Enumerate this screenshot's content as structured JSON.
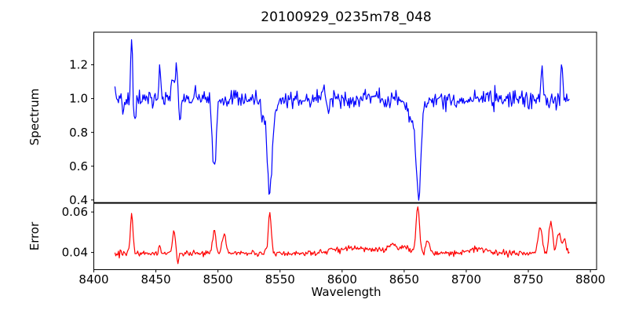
{
  "chart_data": {
    "type": "line",
    "title": "20100929_0235m78_048",
    "xlabel": "Wavelength",
    "xlim": [
      8400,
      8805
    ],
    "xticks": [
      8400,
      8450,
      8500,
      8550,
      8600,
      8650,
      8700,
      8750,
      8800
    ],
    "x_start": 8417,
    "x_end": 8783,
    "n_points": 520,
    "grid": false,
    "legend": "none",
    "axis_color": "#000000",
    "panels": [
      {
        "name": "spectrum",
        "ylabel": "Spectrum",
        "line_color": "#0000ff",
        "ylim": [
          0.385,
          1.393
        ],
        "yticks": [
          0.4,
          0.6,
          0.8,
          1.0,
          1.2
        ],
        "ytick_labels": [
          "0.4",
          "0.6",
          "0.8",
          "1.0",
          "1.2"
        ],
        "baseline": 1.0,
        "noise_sigma": 0.026,
        "noise_seed": 7,
        "features": [
          {
            "x": 8424.0,
            "amp": -0.09,
            "sigma": 0.8
          },
          {
            "x": 8430.5,
            "amp": 0.36,
            "sigma": 0.7
          },
          {
            "x": 8433.0,
            "amp": -0.16,
            "sigma": 0.9
          },
          {
            "x": 8453.0,
            "amp": 0.17,
            "sigma": 0.7
          },
          {
            "x": 8463.5,
            "amp": 0.16,
            "sigma": 0.9
          },
          {
            "x": 8466.5,
            "amp": 0.21,
            "sigma": 0.8
          },
          {
            "x": 8469.5,
            "amp": -0.13,
            "sigma": 0.8
          },
          {
            "x": 8497.0,
            "amp": -0.42,
            "sigma": 1.5
          },
          {
            "x": 8536.0,
            "amp": -0.09,
            "sigma": 1.0
          },
          {
            "x": 8541.7,
            "amp": -0.5,
            "sigma": 2.0
          },
          {
            "x": 8541.7,
            "amp": -0.05,
            "sigma": 6.0
          },
          {
            "x": 8585.0,
            "amp": 0.1,
            "sigma": 0.8
          },
          {
            "x": 8589.0,
            "amp": -0.1,
            "sigma": 0.8
          },
          {
            "x": 8655.0,
            "amp": -0.08,
            "sigma": 2.5
          },
          {
            "x": 8661.5,
            "amp": -0.5,
            "sigma": 1.8
          },
          {
            "x": 8661.5,
            "amp": -0.07,
            "sigma": 5.0
          },
          {
            "x": 8761.0,
            "amp": 0.2,
            "sigma": 0.8
          },
          {
            "x": 8777.0,
            "amp": 0.25,
            "sigma": 0.7
          }
        ],
        "key_points": [
          [
            8417,
            1.0
          ],
          [
            8430.5,
            1.35
          ],
          [
            8453,
            1.17
          ],
          [
            8466.5,
            1.21
          ],
          [
            8497,
            0.56
          ],
          [
            8541.7,
            0.46
          ],
          [
            8661.5,
            0.43
          ],
          [
            8761,
            1.21
          ],
          [
            8777,
            1.23
          ],
          [
            8783,
            1.0
          ]
        ]
      },
      {
        "name": "error",
        "ylabel": "Error",
        "line_color": "#ff0000",
        "ylim": [
          0.0315,
          0.0643
        ],
        "yticks": [
          0.04,
          0.06
        ],
        "ytick_labels": [
          "0.04",
          "0.06"
        ],
        "baseline": 0.0395,
        "noise_sigma": 0.00075,
        "noise_seed": 99,
        "features": [
          {
            "x": 8430.5,
            "amp": 0.019,
            "sigma": 1.1
          },
          {
            "x": 8453.0,
            "amp": 0.004,
            "sigma": 1.0
          },
          {
            "x": 8464.5,
            "amp": 0.0105,
            "sigma": 1.3
          },
          {
            "x": 8467.5,
            "amp": -0.005,
            "sigma": 0.8
          },
          {
            "x": 8497.0,
            "amp": 0.0115,
            "sigma": 1.3
          },
          {
            "x": 8505.0,
            "amp": 0.01,
            "sigma": 1.4
          },
          {
            "x": 8541.7,
            "amp": 0.0205,
            "sigma": 1.2
          },
          {
            "x": 8610.0,
            "amp": 0.0025,
            "sigma": 20.0
          },
          {
            "x": 8640.0,
            "amp": 0.004,
            "sigma": 3.0
          },
          {
            "x": 8650.0,
            "amp": 0.003,
            "sigma": 4.0
          },
          {
            "x": 8661.0,
            "amp": 0.0225,
            "sigma": 1.4
          },
          {
            "x": 8669.0,
            "amp": 0.007,
            "sigma": 1.5
          },
          {
            "x": 8710.0,
            "amp": 0.002,
            "sigma": 8.0
          },
          {
            "x": 8759.5,
            "amp": 0.0135,
            "sigma": 1.6
          },
          {
            "x": 8768.0,
            "amp": 0.016,
            "sigma": 1.4
          },
          {
            "x": 8774.5,
            "amp": 0.0105,
            "sigma": 1.6
          },
          {
            "x": 8779.0,
            "amp": 0.008,
            "sigma": 1.2
          }
        ],
        "key_points": [
          [
            8417,
            0.039
          ],
          [
            8430.5,
            0.059
          ],
          [
            8464.5,
            0.05
          ],
          [
            8497,
            0.052
          ],
          [
            8541.7,
            0.06
          ],
          [
            8661,
            0.062
          ],
          [
            8768,
            0.058
          ],
          [
            8783,
            0.039
          ]
        ]
      }
    ]
  }
}
